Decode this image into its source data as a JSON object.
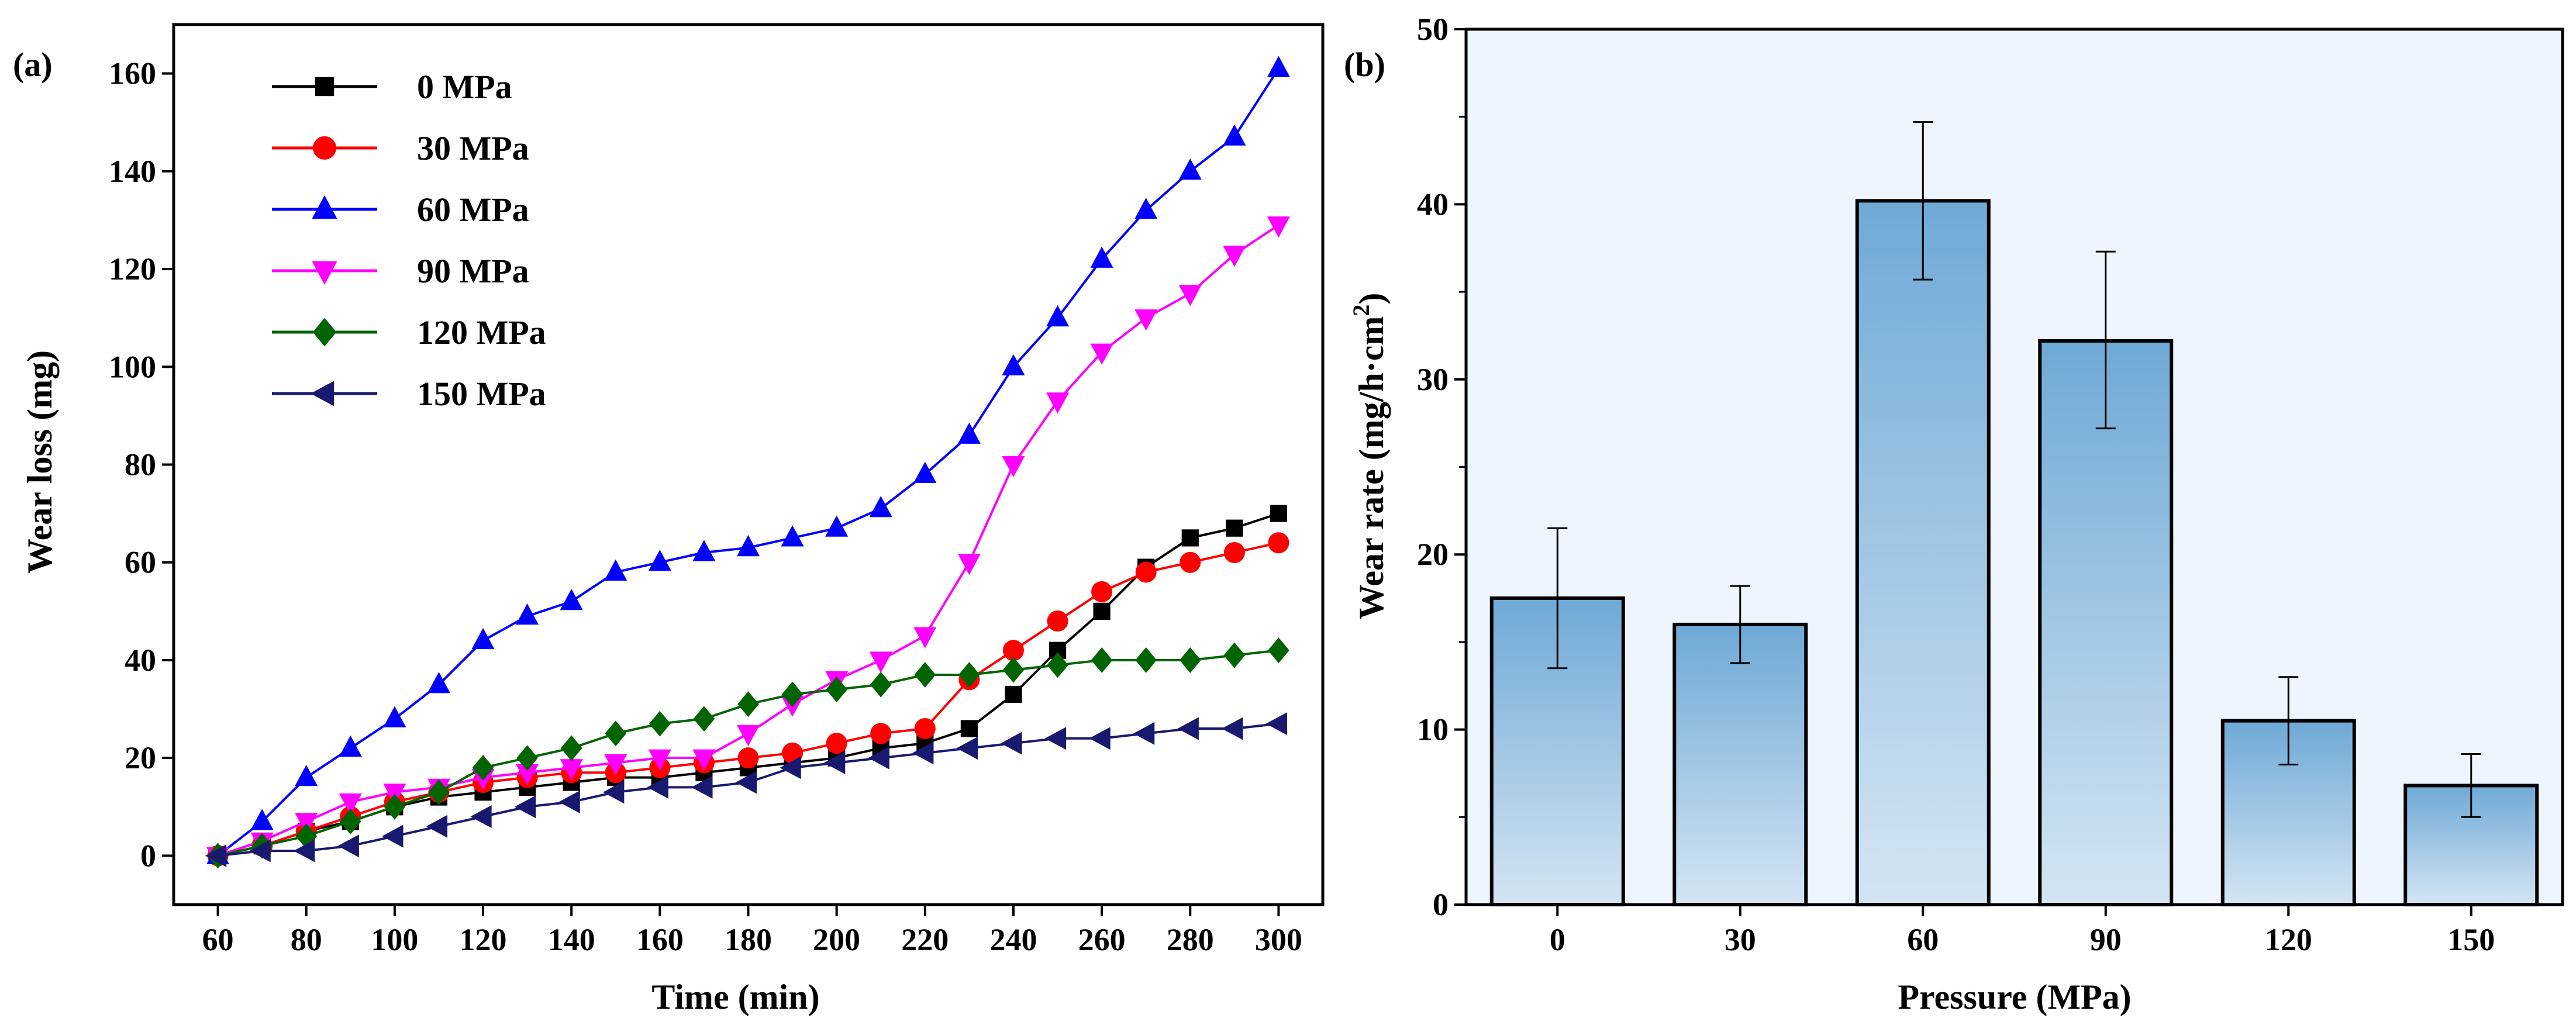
{
  "chart_data": [
    {
      "panel_label": "(a)",
      "type": "line",
      "xlabel": "Time (min)",
      "ylabel": "Wear loss  (mg)",
      "xlim": [
        50,
        310
      ],
      "ylim": [
        -10,
        170
      ],
      "x_ticks": [
        "60",
        "80",
        "100",
        "120",
        "140",
        "160",
        "180",
        "200",
        "220",
        "240",
        "260",
        "280",
        "300"
      ],
      "y_ticks": [
        "0",
        "20",
        "40",
        "60",
        "80",
        "100",
        "120",
        "140",
        "160"
      ],
      "legend_position": "top-left",
      "x": [
        60,
        70,
        80,
        90,
        100,
        110,
        120,
        130,
        140,
        150,
        160,
        170,
        180,
        190,
        200,
        210,
        220,
        230,
        240,
        250,
        260,
        270,
        280,
        290,
        300
      ],
      "series": [
        {
          "name": "0 MPa",
          "color": "#000000",
          "marker": "square",
          "values": [
            0,
            2,
            5,
            7,
            10,
            12,
            13,
            14,
            15,
            16,
            16,
            17,
            18,
            19,
            20,
            22,
            23,
            26,
            33,
            42,
            50,
            59,
            65,
            67,
            70
          ]
        },
        {
          "name": "30 MPa",
          "color": "#ff0000",
          "marker": "circle",
          "values": [
            0,
            2,
            5,
            8,
            11,
            13,
            15,
            16,
            17,
            17,
            18,
            19,
            20,
            21,
            23,
            25,
            26,
            36,
            42,
            48,
            54,
            58,
            60,
            62,
            64
          ]
        },
        {
          "name": "60 MPa",
          "color": "#0000ff",
          "marker": "triangle-up",
          "values": [
            0,
            7,
            16,
            22,
            28,
            35,
            44,
            49,
            52,
            58,
            60,
            62,
            63,
            65,
            67,
            71,
            78,
            86,
            100,
            110,
            122,
            132,
            140,
            147,
            161
          ]
        },
        {
          "name": "90 MPa",
          "color": "#ff00ff",
          "marker": "triangle-down",
          "values": [
            0,
            3,
            7,
            11,
            13,
            14,
            16,
            17,
            18,
            19,
            20,
            20,
            25,
            31,
            36,
            40,
            45,
            60,
            80,
            93,
            103,
            110,
            115,
            123,
            129
          ]
        },
        {
          "name": "120 MPa",
          "color": "#006400",
          "marker": "diamond",
          "values": [
            0,
            2,
            4,
            7,
            10,
            13,
            18,
            20,
            22,
            25,
            27,
            28,
            31,
            33,
            34,
            35,
            37,
            37,
            38,
            39,
            40,
            40,
            40,
            41,
            42
          ]
        },
        {
          "name": "150 MPa",
          "color": "#191970",
          "marker": "triangle-left",
          "values": [
            0,
            1,
            1,
            2,
            4,
            6,
            8,
            10,
            11,
            13,
            14,
            14,
            15,
            18,
            19,
            20,
            21,
            22,
            23,
            24,
            24,
            25,
            26,
            26,
            27
          ]
        }
      ]
    },
    {
      "panel_label": "(b)",
      "type": "bar",
      "xlabel": "Pressure (MPa)",
      "ylabel_main": "Wear rate (mg/h·cm",
      "ylabel_sup": "2",
      "ylabel_end": ")",
      "ylim": [
        0,
        50
      ],
      "y_ticks": [
        "0",
        "10",
        "20",
        "30",
        "40",
        "50"
      ],
      "categories": [
        "0",
        "30",
        "60",
        "90",
        "120",
        "150"
      ],
      "values": [
        17.5,
        16.0,
        40.2,
        32.2,
        10.5,
        6.8
      ],
      "errors_upper": [
        21.5,
        18.2,
        44.7,
        37.3,
        13.0,
        8.6
      ],
      "errors_lower": [
        13.5,
        13.8,
        35.7,
        27.2,
        8.0,
        5.0
      ],
      "plot_background": "#eef5fd",
      "bar_gradient": [
        "#6fa9d6",
        "#d4e5f3"
      ]
    }
  ]
}
